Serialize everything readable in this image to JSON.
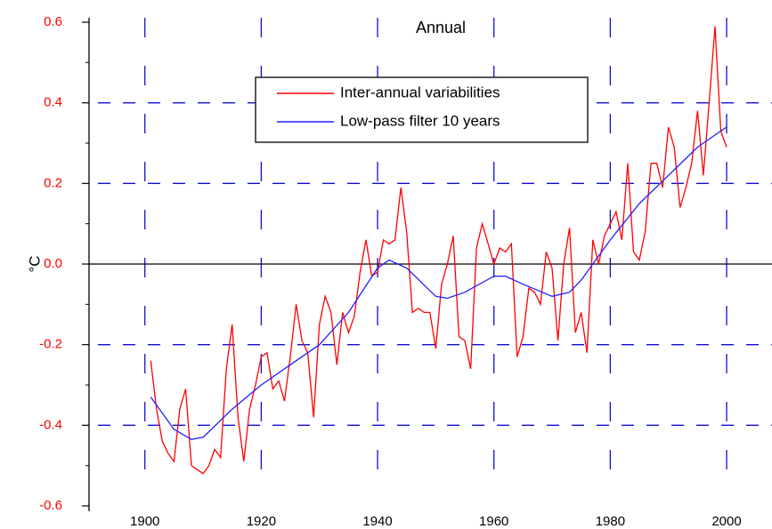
{
  "chart_data": {
    "type": "line",
    "title": "Annual",
    "y_label": "°C",
    "xlim": [
      1890.4,
      2007.8
    ],
    "xticks": [
      1900,
      1920,
      1940,
      1960,
      1980,
      2000
    ],
    "ylim": [
      -0.6,
      0.6
    ],
    "yticks": [
      -0.6,
      -0.4,
      -0.2,
      {
        "value": 0,
        "label": "0.0"
      },
      0.2,
      0.4,
      0.6
    ],
    "grid": true,
    "grid_color": "#1010d0",
    "legend": "top-center",
    "series": [
      {
        "name": "Inter-annual variabilities",
        "color": "#ff0000",
        "x": [
          1901,
          1902,
          1903,
          1904,
          1905,
          1906,
          1907,
          1908,
          1909,
          1910,
          1911,
          1912,
          1913,
          1914,
          1915,
          1916,
          1917,
          1918,
          1919,
          1920,
          1921,
          1922,
          1923,
          1924,
          1925,
          1926,
          1927,
          1928,
          1929,
          1930,
          1931,
          1932,
          1933,
          1934,
          1935,
          1936,
          1937,
          1938,
          1939,
          1940,
          1941,
          1942,
          1943,
          1944,
          1945,
          1946,
          1947,
          1948,
          1949,
          1950,
          1951,
          1952,
          1953,
          1954,
          1955,
          1956,
          1957,
          1958,
          1959,
          1960,
          1961,
          1962,
          1963,
          1964,
          1965,
          1966,
          1967,
          1968,
          1969,
          1970,
          1971,
          1972,
          1973,
          1974,
          1975,
          1976,
          1977,
          1978,
          1979,
          1980,
          1981,
          1982,
          1983,
          1984,
          1985,
          1986,
          1987,
          1988,
          1989,
          1990,
          1991,
          1992,
          1993,
          1994,
          1995,
          1996,
          1997,
          1998,
          1999,
          2000
        ],
        "values": [
          -0.24,
          -0.36,
          -0.44,
          -0.47,
          -0.49,
          -0.36,
          -0.31,
          -0.5,
          -0.51,
          -0.52,
          -0.5,
          -0.46,
          -0.48,
          -0.26,
          -0.15,
          -0.38,
          -0.49,
          -0.36,
          -0.3,
          -0.23,
          -0.22,
          -0.31,
          -0.29,
          -0.34,
          -0.23,
          -0.1,
          -0.19,
          -0.22,
          -0.38,
          -0.15,
          -0.08,
          -0.12,
          -0.25,
          -0.12,
          -0.17,
          -0.13,
          -0.02,
          0.06,
          -0.03,
          -0.02,
          0.06,
          0.05,
          0.06,
          0.19,
          0.08,
          -0.12,
          -0.11,
          -0.12,
          -0.12,
          -0.21,
          -0.05,
          0.0,
          0.07,
          -0.18,
          -0.19,
          -0.26,
          0.04,
          0.1,
          0.05,
          0.0,
          0.04,
          0.03,
          0.05,
          -0.23,
          -0.18,
          -0.06,
          -0.07,
          -0.1,
          0.03,
          -0.01,
          -0.19,
          0.0,
          0.09,
          -0.17,
          -0.12,
          -0.22,
          0.06,
          0.0,
          0.07,
          0.1,
          0.13,
          0.06,
          0.25,
          0.03,
          0.01,
          0.08,
          0.25,
          0.25,
          0.19,
          0.34,
          0.29,
          0.14,
          0.19,
          0.25,
          0.38,
          0.22,
          0.4,
          0.59,
          0.33,
          0.29
        ]
      },
      {
        "name": "Low-pass filter 10 years",
        "color": "#2020ff",
        "x": [
          1901,
          1905,
          1908,
          1910,
          1915,
          1920,
          1925,
          1930,
          1935,
          1940,
          1942,
          1945,
          1950,
          1952,
          1955,
          1960,
          1962,
          1965,
          1970,
          1973,
          1975,
          1980,
          1985,
          1990,
          1995,
          2000
        ],
        "values": [
          -0.33,
          -0.41,
          -0.435,
          -0.43,
          -0.36,
          -0.3,
          -0.25,
          -0.2,
          -0.12,
          -0.01,
          0.01,
          -0.01,
          -0.08,
          -0.085,
          -0.07,
          -0.03,
          -0.03,
          -0.05,
          -0.08,
          -0.07,
          -0.04,
          0.06,
          0.15,
          0.22,
          0.29,
          0.34
        ]
      }
    ]
  }
}
